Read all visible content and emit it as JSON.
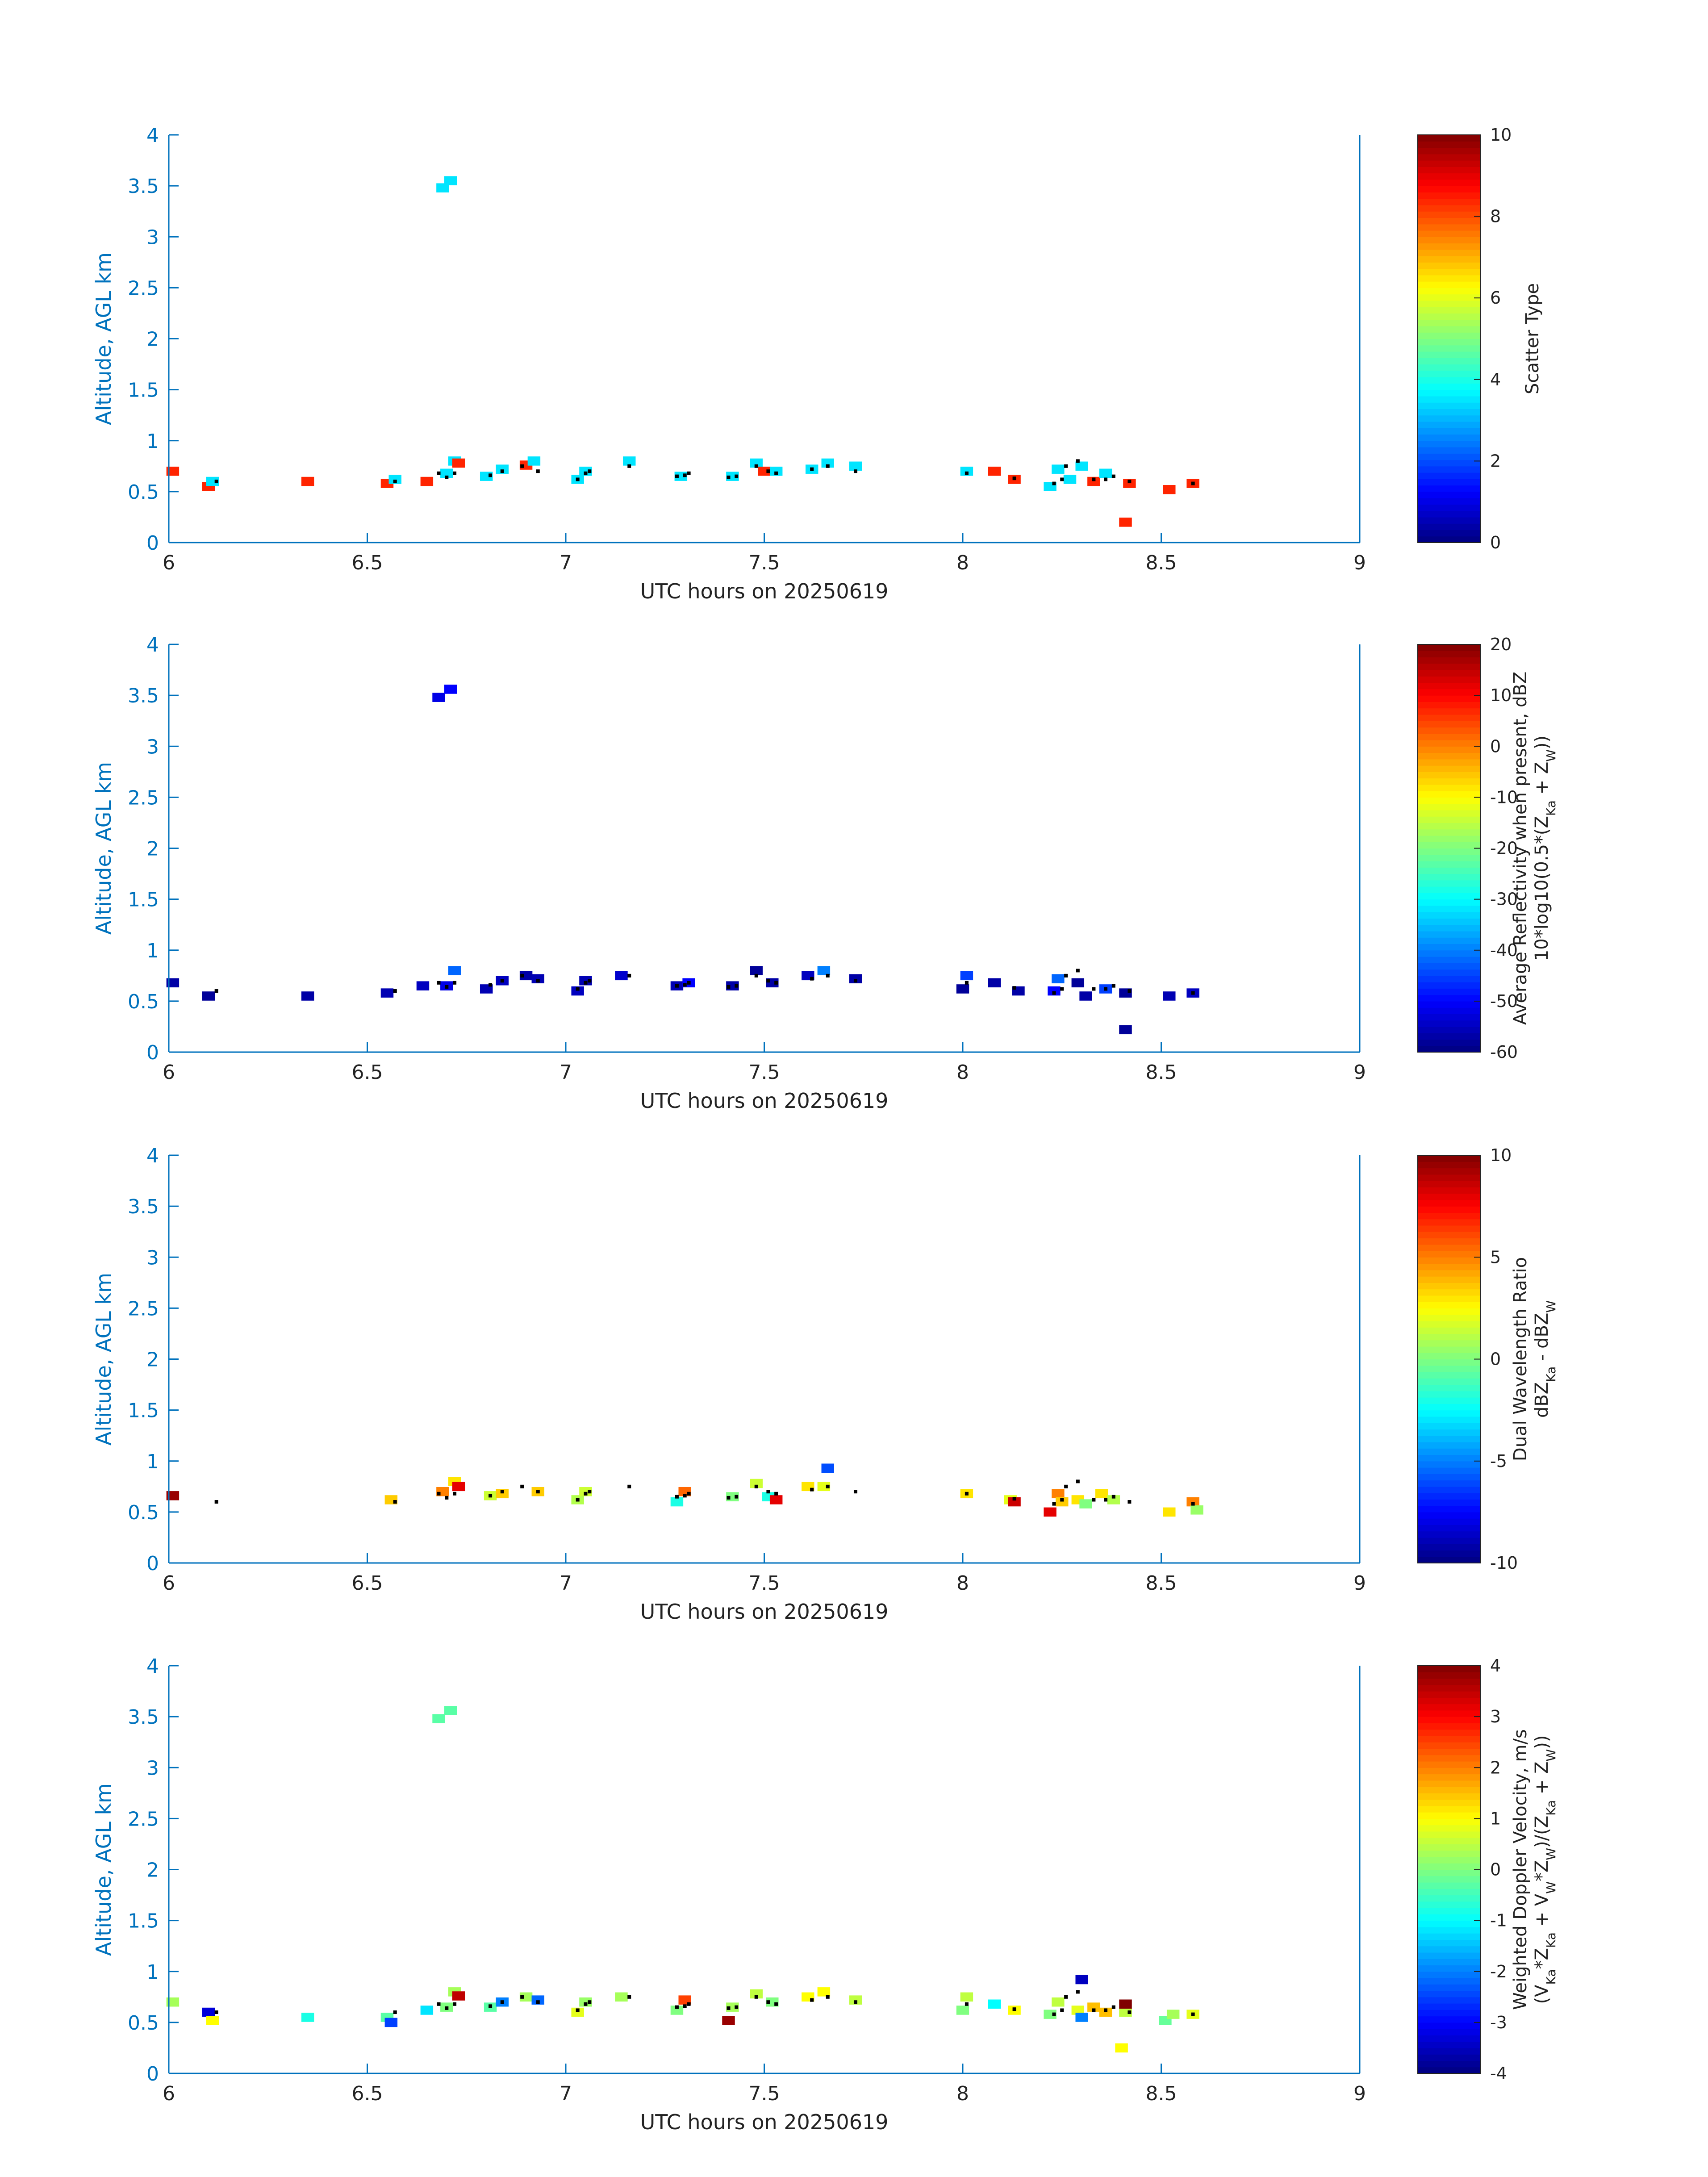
{
  "colors": {
    "axis": "#0072BD",
    "text": "#222222",
    "marker": "#000000"
  },
  "colormap": "jet",
  "chart_data": [
    {
      "type": "heatmap",
      "xlabel": "UTC hours on 20250619",
      "ylabel": "Altitude, AGL km",
      "xlim": [
        6,
        9
      ],
      "ylim": [
        0,
        4
      ],
      "xticks": [
        "6",
        "6.5",
        "7",
        "7.5",
        "8",
        "8.5",
        "9"
      ],
      "yticks": [
        "0",
        "0.5",
        "1",
        "1.5",
        "2",
        "2.5",
        "3",
        "3.5",
        "4"
      ],
      "colorbar": {
        "label": [
          "Scatter Type"
        ],
        "clim": [
          0,
          10
        ],
        "ticks": [
          "0",
          "2",
          "4",
          "6",
          "8",
          "10"
        ]
      },
      "cells": [
        [
          6.01,
          0.7,
          8.4
        ],
        [
          6.1,
          0.55,
          8.4
        ],
        [
          6.11,
          0.6,
          3.5
        ],
        [
          6.35,
          0.6,
          8.4
        ],
        [
          6.55,
          0.58,
          8.4
        ],
        [
          6.57,
          0.62,
          3.5
        ],
        [
          6.65,
          0.6,
          8.4
        ],
        [
          6.69,
          3.48,
          3.5
        ],
        [
          6.71,
          3.55,
          3.5
        ],
        [
          6.7,
          0.68,
          3.5
        ],
        [
          6.72,
          0.8,
          3.5
        ],
        [
          6.73,
          0.78,
          8.4
        ],
        [
          6.8,
          0.65,
          3.5
        ],
        [
          6.84,
          0.72,
          3.5
        ],
        [
          6.9,
          0.76,
          8.4
        ],
        [
          6.92,
          0.8,
          3.5
        ],
        [
          7.03,
          0.62,
          3.5
        ],
        [
          7.05,
          0.7,
          3.5
        ],
        [
          7.16,
          0.8,
          3.5
        ],
        [
          7.29,
          0.65,
          3.5
        ],
        [
          7.42,
          0.65,
          3.5
        ],
        [
          7.48,
          0.78,
          3.5
        ],
        [
          7.5,
          0.7,
          8.4
        ],
        [
          7.53,
          0.7,
          3.5
        ],
        [
          7.62,
          0.72,
          3.5
        ],
        [
          7.66,
          0.78,
          3.5
        ],
        [
          7.73,
          0.75,
          3.5
        ],
        [
          8.01,
          0.7,
          3.5
        ],
        [
          8.08,
          0.7,
          8.4
        ],
        [
          8.13,
          0.62,
          8.4
        ],
        [
          8.22,
          0.55,
          3.5
        ],
        [
          8.24,
          0.72,
          3.5
        ],
        [
          8.27,
          0.62,
          3.5
        ],
        [
          8.3,
          0.75,
          3.5
        ],
        [
          8.33,
          0.6,
          8.4
        ],
        [
          8.36,
          0.68,
          3.5
        ],
        [
          8.42,
          0.58,
          8.4
        ],
        [
          8.41,
          0.2,
          8.4
        ],
        [
          8.52,
          0.52,
          8.4
        ],
        [
          8.58,
          0.58,
          8.4
        ]
      ]
    },
    {
      "type": "heatmap",
      "xlabel": "UTC hours on 20250619",
      "ylabel": "Altitude, AGL km",
      "xlim": [
        6,
        9
      ],
      "ylim": [
        0,
        4
      ],
      "xticks": [
        "6",
        "6.5",
        "7",
        "7.5",
        "8",
        "8.5",
        "9"
      ],
      "yticks": [
        "0",
        "0.5",
        "1",
        "1.5",
        "2",
        "2.5",
        "3",
        "3.5",
        "4"
      ],
      "colorbar": {
        "label": [
          "Average Reflectivity when present, dBZ",
          "10*log10(0.5*(Z",
          "Ka",
          " + Z",
          "W",
          "))"
        ],
        "clim": [
          -60,
          20
        ],
        "ticks": [
          "-60",
          "-50",
          "-40",
          "-30",
          "-20",
          "-10",
          "0",
          "10",
          "20"
        ]
      },
      "cells": [
        [
          6.01,
          0.68,
          -57
        ],
        [
          6.1,
          0.55,
          -58
        ],
        [
          6.35,
          0.55,
          -57
        ],
        [
          6.55,
          0.58,
          -56
        ],
        [
          6.64,
          0.65,
          -55
        ],
        [
          6.68,
          3.48,
          -52
        ],
        [
          6.71,
          3.56,
          -50
        ],
        [
          6.7,
          0.65,
          -52
        ],
        [
          6.72,
          0.8,
          -42
        ],
        [
          6.8,
          0.62,
          -56
        ],
        [
          6.84,
          0.7,
          -55
        ],
        [
          6.9,
          0.75,
          -57
        ],
        [
          6.93,
          0.72,
          -56
        ],
        [
          7.03,
          0.6,
          -55
        ],
        [
          7.05,
          0.7,
          -56
        ],
        [
          7.14,
          0.75,
          -54
        ],
        [
          7.28,
          0.65,
          -56
        ],
        [
          7.31,
          0.68,
          -50
        ],
        [
          7.42,
          0.65,
          -57
        ],
        [
          7.48,
          0.8,
          -58
        ],
        [
          7.52,
          0.68,
          -57
        ],
        [
          7.61,
          0.75,
          -55
        ],
        [
          7.65,
          0.8,
          -40
        ],
        [
          7.73,
          0.72,
          -57
        ],
        [
          8.0,
          0.62,
          -58
        ],
        [
          8.01,
          0.75,
          -45
        ],
        [
          8.08,
          0.68,
          -57
        ],
        [
          8.14,
          0.6,
          -57
        ],
        [
          8.23,
          0.6,
          -50
        ],
        [
          8.24,
          0.72,
          -42
        ],
        [
          8.29,
          0.68,
          -58
        ],
        [
          8.31,
          0.55,
          -57
        ],
        [
          8.36,
          0.62,
          -45
        ],
        [
          8.41,
          0.58,
          -58
        ],
        [
          8.41,
          0.22,
          -58
        ],
        [
          8.52,
          0.55,
          -56
        ],
        [
          8.58,
          0.58,
          -55
        ]
      ]
    },
    {
      "type": "heatmap",
      "xlabel": "UTC hours on 20250619",
      "ylabel": "Altitude, AGL km",
      "xlim": [
        6,
        9
      ],
      "ylim": [
        0,
        4
      ],
      "xticks": [
        "6",
        "6.5",
        "7",
        "7.5",
        "8",
        "8.5",
        "9"
      ],
      "yticks": [
        "0",
        "0.5",
        "1",
        "1.5",
        "2",
        "2.5",
        "3",
        "3.5",
        "4"
      ],
      "colorbar": {
        "label": [
          "Dual Wavelength Ratio",
          "dBZ",
          "Ka",
          " - dBZ",
          "W"
        ],
        "clim": [
          -10,
          10
        ],
        "ticks": [
          "-10",
          "-5",
          "0",
          "5",
          "10"
        ]
      },
      "cells": [
        [
          6.01,
          0.66,
          9.5
        ],
        [
          6.56,
          0.62,
          3.5
        ],
        [
          6.69,
          0.7,
          5.0
        ],
        [
          6.72,
          0.8,
          3.0
        ],
        [
          6.73,
          0.75,
          8.0
        ],
        [
          6.81,
          0.66,
          1.5
        ],
        [
          6.84,
          0.68,
          3.5
        ],
        [
          6.93,
          0.7,
          3.5
        ],
        [
          7.03,
          0.62,
          1.0
        ],
        [
          7.05,
          0.7,
          1.5
        ],
        [
          7.28,
          0.6,
          -2.0
        ],
        [
          7.3,
          0.7,
          5.5
        ],
        [
          7.42,
          0.65,
          0.0
        ],
        [
          7.48,
          0.78,
          1.5
        ],
        [
          7.51,
          0.65,
          -2.0
        ],
        [
          7.53,
          0.62,
          8.0
        ],
        [
          7.61,
          0.75,
          3.0
        ],
        [
          7.65,
          0.75,
          2.0
        ],
        [
          7.66,
          0.93,
          -6.0
        ],
        [
          8.01,
          0.68,
          3.0
        ],
        [
          8.12,
          0.62,
          2.0
        ],
        [
          8.13,
          0.6,
          8.5
        ],
        [
          8.22,
          0.5,
          8.0
        ],
        [
          8.24,
          0.68,
          5.0
        ],
        [
          8.25,
          0.6,
          3.5
        ],
        [
          8.29,
          0.62,
          3.0
        ],
        [
          8.31,
          0.58,
          0.0
        ],
        [
          8.35,
          0.68,
          3.0
        ],
        [
          8.38,
          0.62,
          1.0
        ],
        [
          8.52,
          0.5,
          3.0
        ],
        [
          8.58,
          0.6,
          5.0
        ],
        [
          8.59,
          0.52,
          0.5
        ]
      ]
    },
    {
      "type": "heatmap",
      "xlabel": "UTC hours on 20250619",
      "ylabel": "Altitude, AGL km",
      "xlim": [
        6,
        9
      ],
      "ylim": [
        0,
        4
      ],
      "xticks": [
        "6",
        "6.5",
        "7",
        "7.5",
        "8",
        "8.5",
        "9"
      ],
      "yticks": [
        "0",
        "0.5",
        "1",
        "1.5",
        "2",
        "2.5",
        "3",
        "3.5",
        "4"
      ],
      "colorbar": {
        "label": [
          "Weighted Doppler Velocity, m/s",
          "(V",
          "Ka",
          "*Z",
          "Ka",
          " + V",
          "W",
          "*Z",
          "W",
          ")/(Z",
          "Ka",
          " + Z",
          "W",
          "))"
        ],
        "clim": [
          -4,
          4
        ],
        "ticks": [
          "-4",
          "-3",
          "-2",
          "-1",
          "0",
          "1",
          "2",
          "3",
          "4"
        ]
      },
      "cells": [
        [
          6.01,
          0.7,
          0.3
        ],
        [
          6.1,
          0.6,
          -3.3
        ],
        [
          6.11,
          0.52,
          1.0
        ],
        [
          6.35,
          0.55,
          -0.8
        ],
        [
          6.55,
          0.55,
          -0.3
        ],
        [
          6.56,
          0.5,
          -2.5
        ],
        [
          6.65,
          0.62,
          -1.2
        ],
        [
          6.68,
          3.48,
          -0.3
        ],
        [
          6.71,
          3.56,
          -0.3
        ],
        [
          6.7,
          0.65,
          0.0
        ],
        [
          6.72,
          0.8,
          0.3
        ],
        [
          6.73,
          0.76,
          3.5
        ],
        [
          6.81,
          0.65,
          -0.3
        ],
        [
          6.84,
          0.7,
          -2.0
        ],
        [
          6.9,
          0.75,
          0.3
        ],
        [
          6.93,
          0.72,
          -2.2
        ],
        [
          7.03,
          0.6,
          0.8
        ],
        [
          7.05,
          0.7,
          0.2
        ],
        [
          7.14,
          0.75,
          0.3
        ],
        [
          7.28,
          0.62,
          0.0
        ],
        [
          7.3,
          0.72,
          2.5
        ],
        [
          7.42,
          0.65,
          0.3
        ],
        [
          7.41,
          0.52,
          3.8
        ],
        [
          7.48,
          0.78,
          0.5
        ],
        [
          7.52,
          0.7,
          0.0
        ],
        [
          7.61,
          0.75,
          1.0
        ],
        [
          7.65,
          0.8,
          1.0
        ],
        [
          7.73,
          0.72,
          0.5
        ],
        [
          8.0,
          0.62,
          0.0
        ],
        [
          8.01,
          0.75,
          0.5
        ],
        [
          8.08,
          0.68,
          -1.0
        ],
        [
          8.13,
          0.62,
          1.0
        ],
        [
          8.22,
          0.58,
          0.0
        ],
        [
          8.24,
          0.7,
          0.5
        ],
        [
          8.29,
          0.62,
          0.8
        ],
        [
          8.3,
          0.92,
          -3.5
        ],
        [
          8.3,
          0.55,
          -2.0
        ],
        [
          8.33,
          0.65,
          1.5
        ],
        [
          8.36,
          0.6,
          1.5
        ],
        [
          8.41,
          0.6,
          0.5
        ],
        [
          8.41,
          0.68,
          4.0
        ],
        [
          8.4,
          0.25,
          1.0
        ],
        [
          8.51,
          0.52,
          -0.2
        ],
        [
          8.53,
          0.58,
          0.3
        ],
        [
          8.58,
          0.58,
          0.8
        ]
      ]
    }
  ],
  "markers": [
    [
      6.12,
      0.6
    ],
    [
      6.57,
      0.6
    ],
    [
      6.68,
      0.68
    ],
    [
      6.7,
      0.64
    ],
    [
      6.72,
      0.68
    ],
    [
      6.81,
      0.66
    ],
    [
      6.84,
      0.7
    ],
    [
      6.89,
      0.75
    ],
    [
      6.93,
      0.7
    ],
    [
      7.03,
      0.62
    ],
    [
      7.05,
      0.68
    ],
    [
      7.06,
      0.7
    ],
    [
      7.16,
      0.75
    ],
    [
      7.28,
      0.65
    ],
    [
      7.3,
      0.66
    ],
    [
      7.31,
      0.68
    ],
    [
      7.41,
      0.64
    ],
    [
      7.43,
      0.65
    ],
    [
      7.48,
      0.75
    ],
    [
      7.51,
      0.7
    ],
    [
      7.53,
      0.68
    ],
    [
      7.62,
      0.72
    ],
    [
      7.66,
      0.75
    ],
    [
      7.73,
      0.7
    ],
    [
      8.01,
      0.68
    ],
    [
      8.13,
      0.63
    ],
    [
      8.23,
      0.58
    ],
    [
      8.25,
      0.62
    ],
    [
      8.26,
      0.75
    ],
    [
      8.29,
      0.8
    ],
    [
      8.33,
      0.62
    ],
    [
      8.36,
      0.62
    ],
    [
      8.38,
      0.65
    ],
    [
      8.42,
      0.6
    ],
    [
      8.58,
      0.58
    ]
  ]
}
